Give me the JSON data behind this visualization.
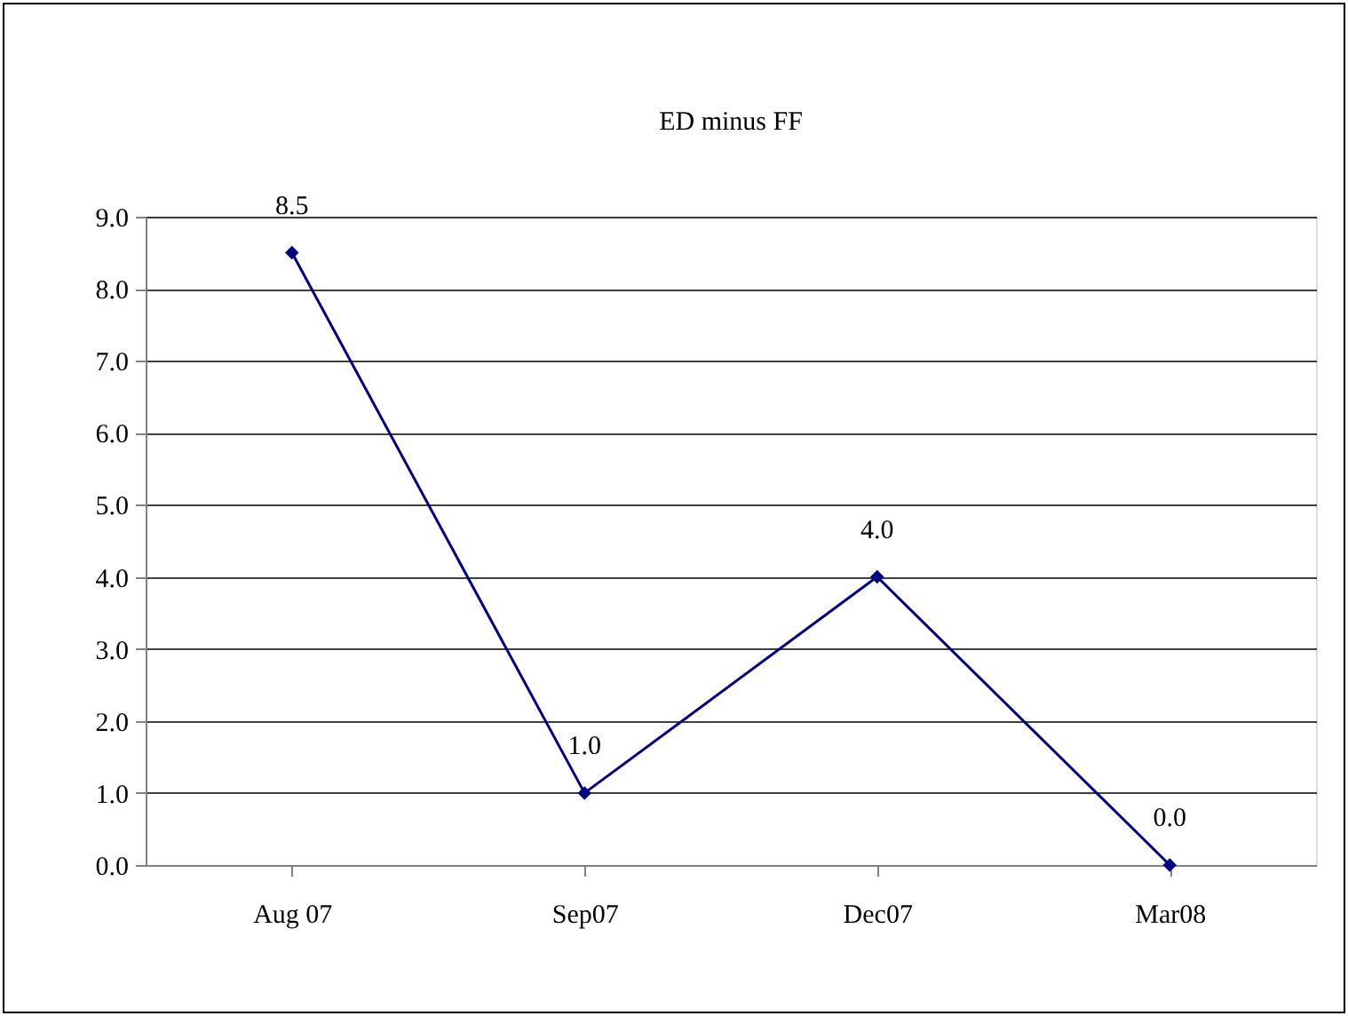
{
  "chart_data": {
    "type": "line",
    "title": "ED minus FF",
    "categories": [
      "Aug 07",
      "Sep07",
      "Dec07",
      "Mar08"
    ],
    "series": [
      {
        "color": "#000080",
        "values": [
          8.5,
          1.0,
          4.0,
          0.0
        ],
        "value_labels": [
          "8.5",
          "1.0",
          "4.0",
          "0.0"
        ]
      }
    ],
    "ylim": [
      0,
      9
    ],
    "yticks": [
      {
        "value": 0,
        "label": "0.0"
      },
      {
        "value": 1,
        "label": "1.0"
      },
      {
        "value": 2,
        "label": "2.0"
      },
      {
        "value": 3,
        "label": "3.0"
      },
      {
        "value": 4,
        "label": "4.0"
      },
      {
        "value": 5,
        "label": "5.0"
      },
      {
        "value": 6,
        "label": "6.0"
      },
      {
        "value": 7,
        "label": "7.0"
      },
      {
        "value": 8,
        "label": "8.0"
      },
      {
        "value": 9,
        "label": "9.0"
      }
    ],
    "grid": "y",
    "marker": "diamond",
    "line_style": "solid"
  }
}
